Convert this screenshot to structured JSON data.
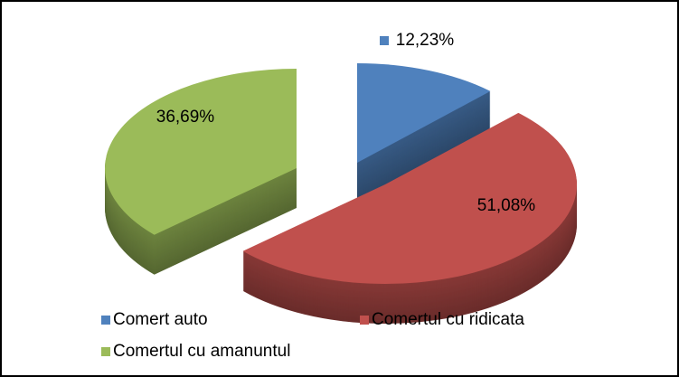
{
  "chart_data": {
    "type": "pie",
    "categories": [
      "Comert auto",
      "Comertul cu ridicata",
      "Comertul cu amanuntul"
    ],
    "values": [
      12.23,
      51.08,
      36.69
    ],
    "value_labels": [
      "12,23%",
      "51,08%",
      "36,69%"
    ],
    "colors": [
      "#4f81bd",
      "#c0504d",
      "#9bbb59"
    ],
    "legend": "bottom"
  }
}
